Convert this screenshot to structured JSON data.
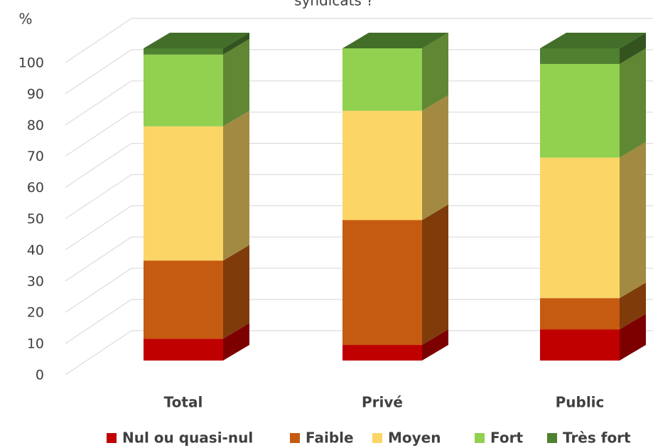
{
  "chart_data": {
    "type": "bar3d_stacked",
    "title": "syndicats ?",
    "y_label": "%",
    "categories": [
      "Total",
      "Privé",
      "Public"
    ],
    "series": [
      {
        "name": "Nul ou quasi-nul",
        "color": "#c00000",
        "values": [
          7,
          5,
          10
        ]
      },
      {
        "name": "Faible",
        "color": "#c55a11",
        "values": [
          25,
          40,
          10
        ]
      },
      {
        "name": "Moyen",
        "color": "#fbd566",
        "values": [
          43,
          35,
          45
        ]
      },
      {
        "name": "Fort",
        "color": "#92d050",
        "values": [
          23,
          20,
          30
        ]
      },
      {
        "name": "Très fort",
        "color": "#4f8130",
        "values": [
          2,
          0,
          5
        ]
      }
    ],
    "ylim": [
      0,
      100
    ],
    "yticks": [
      0,
      10,
      20,
      30,
      40,
      50,
      60,
      70,
      80,
      90,
      100
    ],
    "grid": true
  }
}
